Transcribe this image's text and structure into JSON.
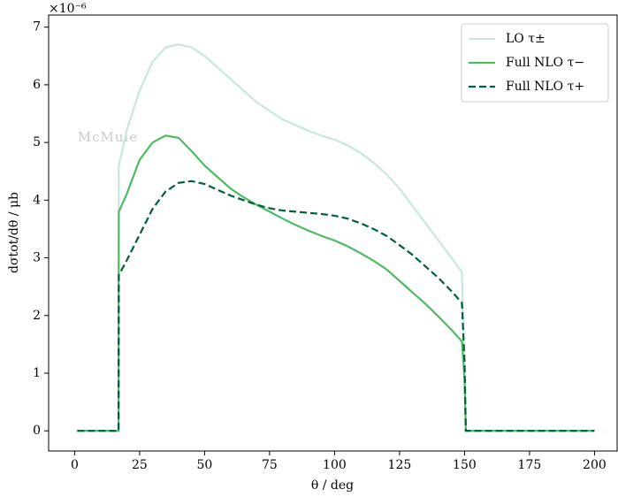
{
  "chart_data": {
    "type": "line",
    "offset_label": "×10⁻⁶",
    "watermark": "McMule",
    "xlabel": "θ / deg",
    "ylabel": "dσtot/dθ / μb",
    "x": [
      1,
      16.9,
      17,
      20,
      25,
      30,
      35,
      40,
      45,
      50,
      55,
      60,
      65,
      70,
      75,
      80,
      85,
      90,
      95,
      100,
      105,
      110,
      115,
      120,
      125,
      130,
      135,
      140,
      145,
      149,
      150,
      150.5,
      200
    ],
    "series": [
      {
        "name": "LO τ±",
        "color": "#c9e8da",
        "linestyle": "solid",
        "values": [
          0,
          0,
          4.6,
          5.2,
          5.9,
          6.4,
          6.65,
          6.7,
          6.65,
          6.5,
          6.3,
          6.1,
          5.9,
          5.7,
          5.55,
          5.4,
          5.3,
          5.2,
          5.12,
          5.05,
          4.95,
          4.82,
          4.65,
          4.45,
          4.2,
          3.9,
          3.6,
          3.3,
          3.0,
          2.75,
          0.9,
          0,
          0
        ]
      },
      {
        "name": "Full NLO τ−",
        "color": "#4dbb63",
        "linestyle": "solid",
        "values": [
          0,
          0,
          3.8,
          4.1,
          4.7,
          5.0,
          5.12,
          5.08,
          4.85,
          4.6,
          4.4,
          4.2,
          4.05,
          3.92,
          3.8,
          3.68,
          3.57,
          3.47,
          3.38,
          3.3,
          3.2,
          3.08,
          2.95,
          2.8,
          2.6,
          2.4,
          2.2,
          1.98,
          1.75,
          1.55,
          0.9,
          0,
          0
        ]
      },
      {
        "name": "Full NLO τ+",
        "color": "#00603a",
        "linestyle": "dashed",
        "values": [
          0,
          0,
          2.7,
          2.95,
          3.4,
          3.85,
          4.15,
          4.3,
          4.33,
          4.28,
          4.18,
          4.08,
          4.0,
          3.92,
          3.86,
          3.82,
          3.8,
          3.78,
          3.76,
          3.73,
          3.68,
          3.6,
          3.5,
          3.38,
          3.22,
          3.05,
          2.85,
          2.65,
          2.42,
          2.22,
          1.2,
          0,
          0
        ]
      }
    ],
    "xlim": [
      -10,
      208.7
    ],
    "ylim": [
      -0.35,
      7.21
    ],
    "xticks": [
      0,
      25,
      50,
      75,
      100,
      125,
      150,
      175,
      200
    ],
    "yticks": [
      0,
      1,
      2,
      3,
      4,
      5,
      6,
      7
    ],
    "legend": "upper right"
  }
}
